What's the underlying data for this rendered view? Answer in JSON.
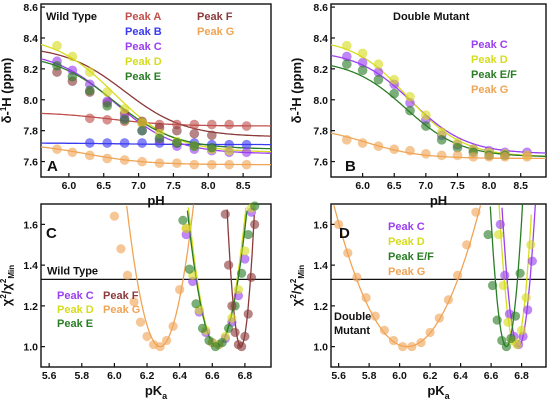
{
  "colors": {
    "Peak A": "#c0504d",
    "Peak B": "#3a3af0",
    "Peak C": "#9a3ff0",
    "Peak D": "#d6dc1e",
    "Peak E": "#2a7d25",
    "Peak E/F": "#2a7d25",
    "Peak F": "#8b3a3a",
    "Peak G": "#f0a456"
  },
  "chart_data": [
    {
      "panel": "A",
      "type": "scatter",
      "title": "Wild Type",
      "xlabel": "pH",
      "ylabel": "δ-¹H (ppm)",
      "xlim": [
        5.6,
        8.9
      ],
      "ylim": [
        7.5,
        8.62
      ],
      "xticks": [
        "6.0",
        "6.5",
        "7.0",
        "7.5",
        "8.0",
        "8.5"
      ],
      "yticks": [
        "7.6",
        "7.8",
        "8.0",
        "8.2",
        "8.4",
        "8.6"
      ],
      "legend": [
        "Peak A",
        "Peak F",
        "Peak B",
        "Peak G",
        "Peak C",
        "Peak D",
        "Peak E"
      ],
      "legend_position": "top",
      "series": [
        {
          "name": "Peak A",
          "x": [
            6.3,
            6.55,
            6.8,
            7.05,
            7.3,
            7.55,
            7.8,
            8.05,
            8.3,
            8.55
          ],
          "y": [
            7.88,
            7.87,
            7.86,
            7.85,
            7.84,
            7.84,
            7.84,
            7.84,
            7.84,
            7.83
          ]
        },
        {
          "name": "Peak F",
          "x": [
            5.83,
            6.05,
            6.3,
            6.55,
            6.8,
            7.05,
            7.3,
            7.55,
            7.8,
            8.05
          ],
          "y": [
            8.18,
            8.12,
            8.05,
            7.98,
            7.91,
            7.86,
            7.82,
            7.8,
            7.78,
            7.77
          ]
        },
        {
          "name": "Peak B",
          "x": [
            6.3,
            6.55,
            6.8,
            7.05,
            7.3,
            7.55,
            7.8,
            8.05,
            8.3,
            8.55
          ],
          "y": [
            7.72,
            7.72,
            7.72,
            7.72,
            7.72,
            7.72,
            7.72,
            7.71,
            7.71,
            7.71
          ]
        },
        {
          "name": "Peak G",
          "x": [
            5.83,
            6.05,
            6.3,
            6.55,
            6.8,
            7.05,
            7.3,
            7.55,
            7.8,
            8.05,
            8.3,
            8.55
          ],
          "y": [
            7.68,
            7.66,
            7.64,
            7.62,
            7.61,
            7.6,
            7.59,
            7.59,
            7.58,
            7.58,
            7.58,
            7.58
          ]
        },
        {
          "name": "Peak C",
          "x": [
            5.83,
            6.05,
            6.3,
            6.55,
            6.8,
            7.05,
            7.3,
            7.55,
            7.8,
            8.05,
            8.3,
            8.55
          ],
          "y": [
            8.25,
            8.19,
            8.1,
            7.99,
            7.88,
            7.8,
            7.74,
            7.7,
            7.68,
            7.67,
            7.66,
            7.66
          ]
        },
        {
          "name": "Peak D",
          "x": [
            5.83,
            6.05,
            6.3,
            6.55,
            6.8,
            7.05,
            7.3,
            7.55,
            7.8,
            8.05,
            8.3
          ],
          "y": [
            8.35,
            8.28,
            8.18,
            8.05,
            7.94,
            7.85,
            7.78,
            7.73,
            7.7,
            7.68,
            7.67
          ]
        },
        {
          "name": "Peak E",
          "x": [
            5.83,
            6.05,
            6.3,
            6.55,
            6.8,
            7.05,
            7.3,
            7.55,
            7.8,
            8.05
          ],
          "y": [
            8.22,
            8.15,
            8.06,
            7.96,
            7.87,
            7.8,
            7.75,
            7.72,
            7.7,
            7.69
          ]
        }
      ],
      "fits": [
        {
          "name": "Peak A",
          "low": 7.83,
          "high": 7.92,
          "pKa": 6.6
        },
        {
          "name": "Peak F",
          "low": 7.76,
          "high": 8.35,
          "pKa": 6.8
        },
        {
          "name": "Peak B",
          "low": 7.71,
          "high": 7.72,
          "pKa": 6.7
        },
        {
          "name": "Peak G",
          "low": 7.58,
          "high": 7.72,
          "pKa": 6.25
        },
        {
          "name": "Peak C",
          "low": 7.65,
          "high": 8.32,
          "pKa": 6.65
        },
        {
          "name": "Peak D",
          "low": 7.66,
          "high": 8.42,
          "pKa": 6.65
        },
        {
          "name": "Peak E",
          "low": 7.68,
          "high": 8.3,
          "pKa": 6.65
        }
      ]
    },
    {
      "panel": "B",
      "type": "scatter",
      "title": "Double Mutant",
      "xlabel": "pH",
      "ylabel": "δ-¹H (ppm)",
      "xlim": [
        5.5,
        8.9
      ],
      "ylim": [
        7.5,
        8.62
      ],
      "xticks": [
        "6.0",
        "6.5",
        "7.0",
        "7.5",
        "8.0",
        "8.5"
      ],
      "yticks": [
        "7.6",
        "7.8",
        "8.0",
        "8.2",
        "8.4",
        "8.6"
      ],
      "legend": [
        "Peak C",
        "Peak D",
        "Peak E/F",
        "Peak G"
      ],
      "legend_position": "right",
      "series": [
        {
          "name": "Peak C",
          "x": [
            5.75,
            6.0,
            6.25,
            6.5,
            6.75,
            7.0,
            7.25,
            7.5,
            7.75,
            8.0,
            8.25,
            8.6
          ],
          "y": [
            8.28,
            8.24,
            8.18,
            8.1,
            7.98,
            7.87,
            7.77,
            7.71,
            7.68,
            7.67,
            7.66,
            7.66
          ]
        },
        {
          "name": "Peak D",
          "x": [
            5.75,
            6.0,
            6.25,
            6.5,
            6.75,
            7.0,
            7.25,
            7.5,
            7.75,
            8.0,
            8.25,
            8.6
          ],
          "y": [
            8.35,
            8.3,
            8.23,
            8.13,
            8.02,
            7.9,
            7.79,
            7.72,
            7.68,
            7.66,
            7.65,
            7.64
          ]
        },
        {
          "name": "Peak E/F",
          "x": [
            5.75,
            6.0,
            6.25,
            6.5,
            6.75,
            7.0,
            7.25,
            7.5,
            7.75,
            8.0,
            8.25
          ],
          "y": [
            8.23,
            8.19,
            8.13,
            8.04,
            7.93,
            7.83,
            7.74,
            7.69,
            7.66,
            7.64,
            7.64
          ]
        },
        {
          "name": "Peak G",
          "x": [
            5.75,
            6.0,
            6.25,
            6.5,
            6.75,
            7.0,
            7.25,
            7.5,
            7.75,
            8.0,
            8.25,
            8.6
          ],
          "y": [
            7.74,
            7.72,
            7.7,
            7.68,
            7.67,
            7.65,
            7.64,
            7.64,
            7.63,
            7.63,
            7.63,
            7.63
          ]
        }
      ],
      "fits": [
        {
          "name": "Peak C",
          "low": 7.65,
          "high": 8.32,
          "pKa": 6.78
        },
        {
          "name": "Peak D",
          "low": 7.63,
          "high": 8.4,
          "pKa": 6.72
        },
        {
          "name": "Peak E/F",
          "low": 7.63,
          "high": 8.26,
          "pKa": 6.68
        },
        {
          "name": "Peak G",
          "low": 7.62,
          "high": 7.83,
          "pKa": 6.05
        }
      ]
    },
    {
      "panel": "C",
      "type": "scatter",
      "title": "Wild Type",
      "xlabel": "pKa",
      "ylabel": "χ²/χ²Min",
      "xlim": [
        5.55,
        6.96
      ],
      "ylim": [
        0.9,
        1.7
      ],
      "xticks": [
        "5.6",
        "5.8",
        "6.0",
        "6.2",
        "6.4",
        "6.6",
        "6.8"
      ],
      "yticks": [
        "1.0",
        "1.2",
        "1.4",
        "1.6"
      ],
      "reference_line": 1.33,
      "legend": [
        "Peak C",
        "Peak F",
        "Peak D",
        "Peak G",
        "Peak E"
      ],
      "legend_position": "bottom-left",
      "series": [
        {
          "name": "Peak G",
          "x": [
            6.0,
            6.04,
            6.08,
            6.12,
            6.16,
            6.2,
            6.24,
            6.28,
            6.32,
            6.36,
            6.4,
            6.44
          ],
          "y": [
            1.64,
            1.48,
            1.35,
            1.22,
            1.12,
            1.05,
            1.01,
            1.0,
            1.03,
            1.1,
            1.28,
            1.58
          ]
        },
        {
          "name": "Peak C",
          "x": [
            6.44,
            6.48,
            6.52,
            6.56,
            6.6,
            6.64,
            6.68,
            6.72,
            6.76,
            6.8,
            6.84
          ],
          "y": [
            1.55,
            1.32,
            1.17,
            1.07,
            1.02,
            1.01,
            1.04,
            1.12,
            1.25,
            1.43,
            1.66
          ]
        },
        {
          "name": "Peak D",
          "x": [
            6.44,
            6.48,
            6.52,
            6.56,
            6.6,
            6.64,
            6.68,
            6.72,
            6.76,
            6.8,
            6.84
          ],
          "y": [
            1.58,
            1.35,
            1.18,
            1.08,
            1.02,
            1.01,
            1.05,
            1.14,
            1.28,
            1.47,
            1.68
          ]
        },
        {
          "name": "Peak E",
          "x": [
            6.42,
            6.46,
            6.5,
            6.54,
            6.58,
            6.62,
            6.66,
            6.7,
            6.74,
            6.78,
            6.82,
            6.86
          ],
          "y": [
            1.62,
            1.38,
            1.21,
            1.09,
            1.03,
            1.0,
            1.02,
            1.09,
            1.2,
            1.36,
            1.55,
            1.69
          ]
        },
        {
          "name": "Peak F",
          "x": [
            6.68,
            6.7,
            6.72,
            6.74,
            6.76,
            6.78,
            6.8,
            6.82,
            6.84,
            6.86
          ],
          "y": [
            1.65,
            1.4,
            1.2,
            1.07,
            1.01,
            1.0,
            1.05,
            1.16,
            1.34,
            1.6
          ]
        }
      ],
      "fits": [
        {
          "name": "Peak G",
          "center": 6.28,
          "curvature": 16.5
        },
        {
          "name": "Peak C",
          "center": 6.63,
          "curvature": 21
        },
        {
          "name": "Peak D",
          "center": 6.63,
          "curvature": 22
        },
        {
          "name": "Peak E",
          "center": 6.63,
          "curvature": 20
        },
        {
          "name": "Peak F",
          "center": 6.775,
          "curvature": 95
        }
      ]
    },
    {
      "panel": "D",
      "type": "scatter",
      "title": "Double Mutant",
      "xlabel": "pKa",
      "ylabel": "χ²/χ²Min",
      "xlim": [
        5.55,
        6.96
      ],
      "ylim": [
        0.9,
        1.7
      ],
      "xticks": [
        "5.6",
        "5.8",
        "6.0",
        "6.2",
        "6.4",
        "6.6",
        "6.8"
      ],
      "yticks": [
        "1.0",
        "1.2",
        "1.4",
        "1.6"
      ],
      "reference_line": 1.33,
      "legend": [
        "Peak C",
        "Peak D",
        "Peak E/F",
        "Peak G"
      ],
      "legend_position": "top-left",
      "series": [
        {
          "name": "Peak G",
          "x": [
            5.6,
            5.66,
            5.72,
            5.78,
            5.84,
            5.9,
            5.96,
            6.02,
            6.08,
            6.14,
            6.2,
            6.26,
            6.32,
            6.38,
            6.44,
            6.5
          ],
          "y": [
            1.6,
            1.46,
            1.34,
            1.24,
            1.15,
            1.08,
            1.03,
            1.0,
            1.0,
            1.02,
            1.07,
            1.14,
            1.23,
            1.35,
            1.5,
            1.66
          ]
        },
        {
          "name": "Peak C",
          "x": [
            6.66,
            6.69,
            6.72,
            6.75,
            6.78,
            6.81,
            6.84,
            6.87
          ],
          "y": [
            1.6,
            1.35,
            1.16,
            1.05,
            1.01,
            1.05,
            1.18,
            1.42
          ]
        },
        {
          "name": "Peak D",
          "x": [
            6.65,
            6.68,
            6.71,
            6.74,
            6.77,
            6.8,
            6.83,
            6.86
          ],
          "y": [
            1.55,
            1.3,
            1.12,
            1.03,
            1.01,
            1.08,
            1.24,
            1.5
          ]
        },
        {
          "name": "Peak E/F",
          "x": [
            6.58,
            6.61,
            6.64,
            6.67,
            6.7,
            6.73,
            6.76,
            6.79
          ],
          "y": [
            1.55,
            1.3,
            1.13,
            1.03,
            1.0,
            1.04,
            1.15,
            1.36
          ]
        }
      ],
      "fits": [
        {
          "name": "Peak G",
          "center": 6.05,
          "curvature": 3.0
        },
        {
          "name": "Peak C",
          "center": 6.78,
          "curvature": 58
        },
        {
          "name": "Peak D",
          "center": 6.76,
          "curvature": 60
        },
        {
          "name": "Peak E/F",
          "center": 6.7,
          "curvature": 62
        }
      ]
    }
  ],
  "annotations": {
    "panel_c_label": "C",
    "panel_c_wild_type": "Wild Type",
    "panel_d_label": "D",
    "panel_d_mutant_line1": "Double",
    "panel_d_mutant_line2": "Mutant"
  }
}
